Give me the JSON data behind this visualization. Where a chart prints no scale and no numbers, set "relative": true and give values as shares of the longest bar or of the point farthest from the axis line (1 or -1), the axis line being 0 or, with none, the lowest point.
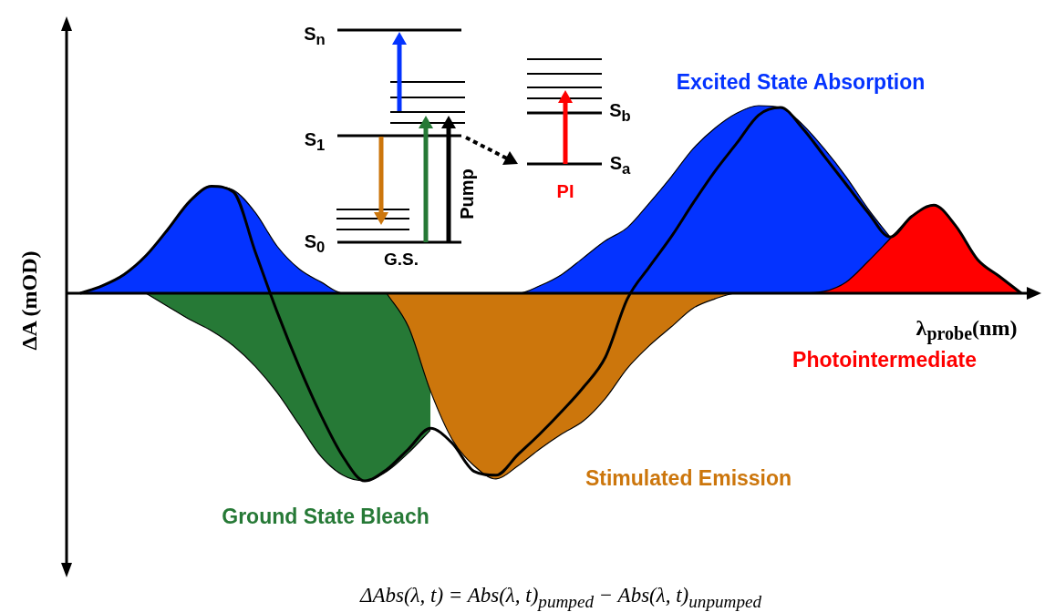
{
  "chart_data": {
    "type": "area",
    "relative": true,
    "xlabel": "λ$_{probe}$(nm)",
    "ylabel": "ΔA (mOD)",
    "annotations": [
      "S$_{n}$",
      "S$_{1}$",
      "S$_{0}$",
      "G.S.",
      "Pump",
      "S$_{b}$",
      "S$_{a}$",
      "PI",
      "ΔAbs(λ, t) = Abs(λ, t)$_{pumped}$ − Abs(λ, t)$_{unpumped}$"
    ],
    "categories": [
      null,
      null,
      null,
      null,
      null,
      null,
      null,
      null,
      null,
      null,
      null,
      null,
      null,
      null,
      null,
      null,
      null,
      null,
      null,
      null,
      null,
      null,
      null,
      null,
      null,
      null,
      null,
      null,
      null,
      null,
      null,
      null,
      null,
      null,
      null,
      null,
      null,
      null,
      null,
      null,
      null,
      null,
      null,
      null
    ],
    "series": [
      {
        "name": "Excited State Absorption",
        "color": "#0433ff",
        "values": [
          0,
          0.04,
          0.1,
          0.2,
          0.34,
          0.49,
          0.57,
          0.55,
          0.43,
          0.25,
          0.13,
          0.06,
          0,
          0,
          0,
          0,
          0,
          0,
          0,
          0,
          0,
          0.04,
          0.1,
          0.19,
          0.28,
          0.35,
          0.48,
          0.62,
          0.77,
          0.88,
          0.96,
          1,
          0.99,
          0.9,
          0.77,
          0.62,
          0.45,
          0.3,
          null,
          null,
          null,
          null,
          null,
          null
        ]
      },
      {
        "name": "Ground State Bleach",
        "color": "#267936",
        "values": [
          null,
          null,
          null,
          0,
          -0.07,
          -0.14,
          -0.2,
          -0.28,
          -0.39,
          -0.53,
          -0.7,
          -0.87,
          -0.97,
          -1,
          -0.95,
          -0.85,
          -0.73,
          null,
          null,
          null,
          null,
          null,
          null,
          null,
          null,
          null,
          null,
          null,
          null,
          null,
          null,
          null,
          null,
          null,
          null,
          null,
          null,
          null,
          null,
          null,
          null,
          null,
          null,
          null
        ]
      },
      {
        "name": "Stimulated Emission",
        "color": "#cc760c",
        "values": [
          null,
          null,
          null,
          null,
          null,
          null,
          null,
          null,
          null,
          null,
          null,
          null,
          null,
          null,
          0,
          -0.18,
          -0.52,
          -0.78,
          -0.92,
          -0.99,
          -0.92,
          -0.83,
          -0.75,
          -0.68,
          -0.56,
          -0.4,
          -0.28,
          -0.18,
          -0.08,
          -0.03,
          0,
          0,
          null,
          null,
          null,
          null,
          null,
          null,
          null,
          null,
          null,
          null,
          null,
          null
        ]
      },
      {
        "name": "Photointermediate",
        "color": "#ff0000",
        "values": [
          null,
          null,
          null,
          null,
          null,
          null,
          null,
          null,
          null,
          null,
          null,
          null,
          null,
          null,
          null,
          null,
          null,
          null,
          null,
          null,
          null,
          null,
          null,
          null,
          null,
          null,
          null,
          null,
          null,
          null,
          null,
          null,
          null,
          0,
          0.01,
          0.06,
          0.17,
          0.29,
          0.41,
          0.47,
          0.36,
          0.18,
          0.09,
          0
        ]
      },
      {
        "type": "line",
        "color": "#000000",
        "values": [
          0,
          0.04,
          0.1,
          0.2,
          0.34,
          0.49,
          0.57,
          0.54,
          0.22,
          -0.1,
          -0.39,
          -0.65,
          -0.87,
          -1,
          -0.94,
          -0.83,
          -0.72,
          -0.8,
          -0.95,
          -0.97,
          -0.86,
          -0.75,
          -0.63,
          -0.5,
          -0.34,
          -0.03,
          0.14,
          0.3,
          0.48,
          0.65,
          0.8,
          0.95,
          0.99,
          0.88,
          0.73,
          0.58,
          0.43,
          0.3,
          0.41,
          0.47,
          0.36,
          0.18,
          0.09,
          0
        ]
      }
    ]
  }
}
